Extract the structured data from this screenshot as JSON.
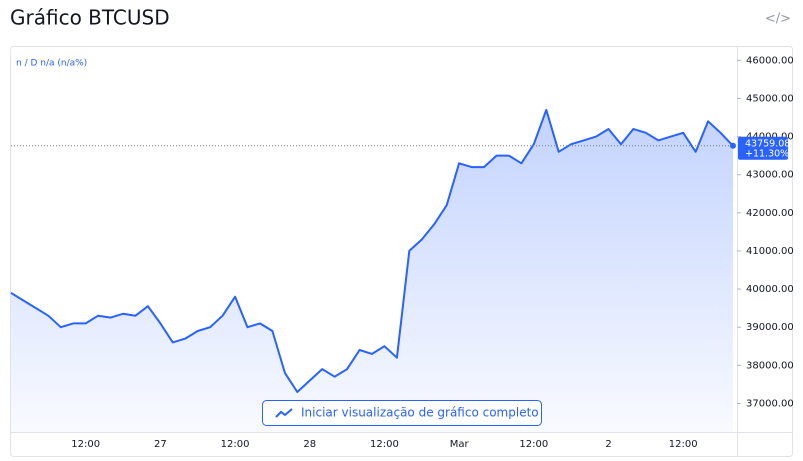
{
  "chart_data": {
    "type": "line",
    "title": "Gráfico BTCUSD",
    "legend_text": "n / D  n/a (n/a%)",
    "button_text": "Iniciar visualização de gráfico completo",
    "last_price": 43759.08,
    "change": "+11.30%",
    "color": "#2962ff",
    "categories": [
      null,
      null,
      null,
      null,
      null,
      null,
      "12:00",
      null,
      null,
      null,
      null,
      null,
      "27",
      null,
      null,
      null,
      null,
      null,
      "12:00",
      null,
      null,
      null,
      null,
      null,
      "28",
      null,
      null,
      null,
      null,
      null,
      "12:00",
      null,
      null,
      null,
      null,
      null,
      "Mar",
      null,
      null,
      null,
      null,
      null,
      "12:00",
      null,
      null,
      null,
      null,
      null,
      "2",
      null,
      null,
      null,
      null,
      null,
      "12:00",
      null,
      null,
      null,
      null
    ],
    "values": [
      39900,
      39700,
      39500,
      39300,
      39000,
      39100,
      39100,
      39300,
      39250,
      39350,
      39300,
      39550,
      39100,
      38600,
      38700,
      38900,
      39000,
      39300,
      39800,
      39000,
      39100,
      38900,
      37800,
      37300,
      37600,
      37900,
      37700,
      37900,
      38400,
      38300,
      38500,
      38200,
      41000,
      41300,
      41700,
      42200,
      43300,
      43200,
      43200,
      43500,
      43500,
      43300,
      43800,
      44700,
      43600,
      43800,
      43900,
      44000,
      44200,
      43800,
      44200,
      44100,
      43900,
      44000,
      44100,
      43600,
      44400,
      44100,
      43759.08
    ],
    "ylim": [
      36250,
      46350
    ],
    "yticks": [
      {
        "value": 37000,
        "label": "37000.00"
      },
      {
        "value": 38000,
        "label": "38000.00"
      },
      {
        "value": 39000,
        "label": "39000.00"
      },
      {
        "value": 40000,
        "label": "40000.00"
      },
      {
        "value": 41000,
        "label": "41000.00"
      },
      {
        "value": 42000,
        "label": "42000.00"
      },
      {
        "value": 43000,
        "label": "43000.00"
      },
      {
        "value": 44000,
        "label": "44000.00"
      },
      {
        "value": 45000,
        "label": "45000.00"
      },
      {
        "value": 46000,
        "label": "46000.00"
      }
    ]
  }
}
